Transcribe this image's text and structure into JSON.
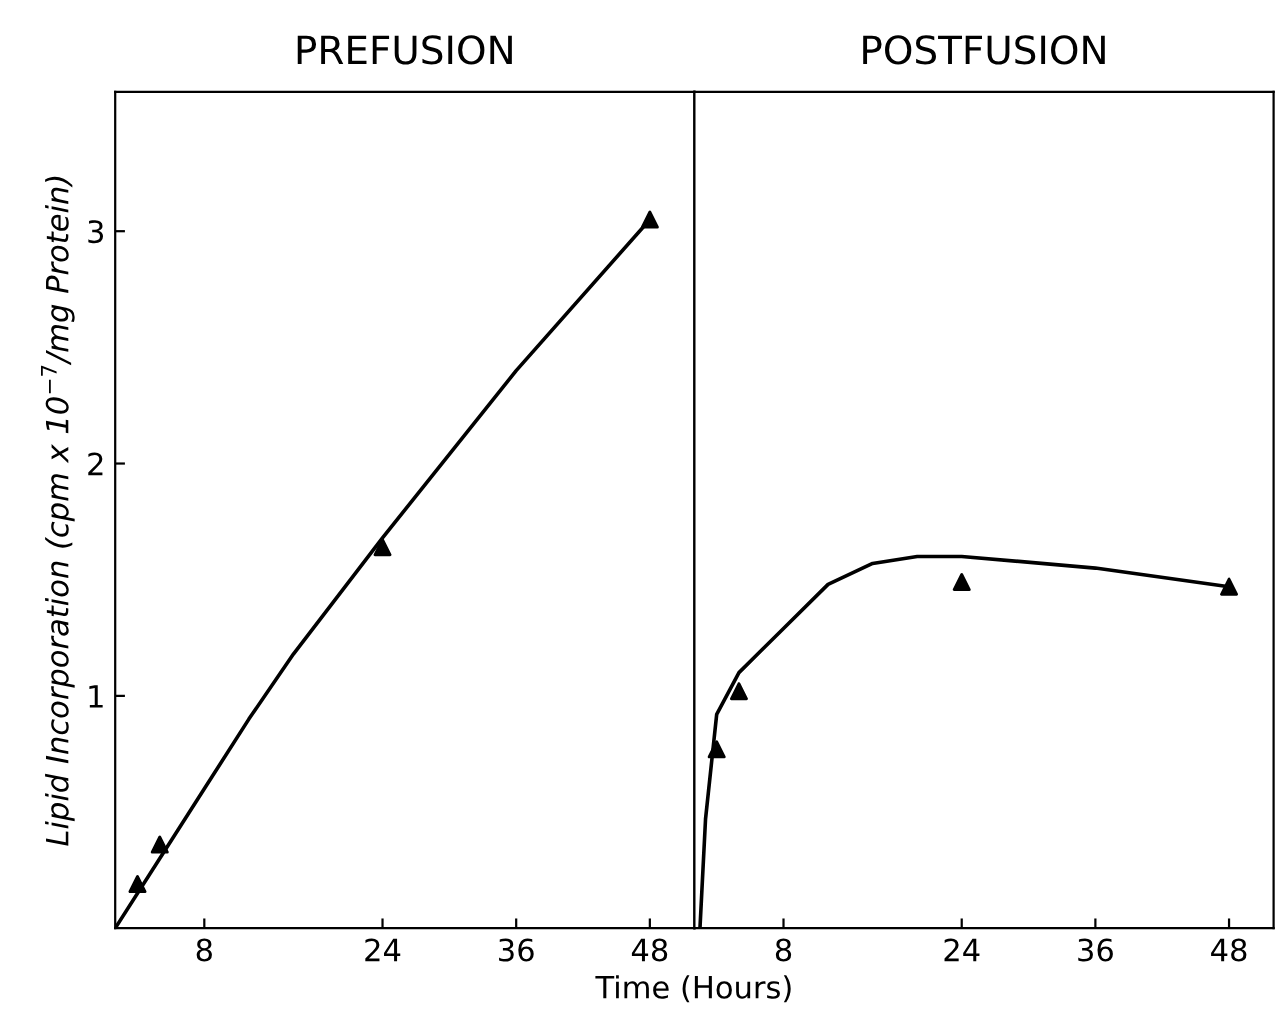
{
  "chart_data": [
    {
      "type": "scatter",
      "title": "PREFUSION",
      "xlabel": "Time (Hours)",
      "ylabel": "Lipid Incorporation (cpm x 10$^{−7}$/mg Protein)",
      "xlim": [
        0,
        52
      ],
      "xticks": [
        8,
        24,
        36,
        48
      ],
      "ylim": [
        0,
        3.6
      ],
      "yticks": [
        1,
        2,
        3
      ],
      "grid": false,
      "legend": false,
      "series": [
        {
          "color": "#000000",
          "marker": "triangle",
          "x": [
            2,
            4,
            24,
            48
          ],
          "values": [
            0.19,
            0.36,
            1.64,
            3.05
          ]
        },
        {
          "type": "line",
          "color": "#000000",
          "marker": "none",
          "line_style": "solid",
          "x": [
            0,
            4,
            8,
            12,
            16,
            24,
            36,
            48
          ],
          "values": [
            0,
            0.3,
            0.6,
            0.9,
            1.18,
            1.68,
            2.4,
            3.05
          ]
        }
      ]
    },
    {
      "type": "scatter",
      "title": "POSTFUSION",
      "xlim": [
        0,
        52
      ],
      "xticks": [
        8,
        24,
        36,
        48
      ],
      "ylim": [
        0,
        3.6
      ],
      "tick_labels": "x",
      "grid": false,
      "legend": false,
      "series": [
        {
          "color": "#000000",
          "marker": "triangle",
          "x": [
            2,
            4,
            24,
            48
          ],
          "values": [
            0.77,
            1.02,
            1.49,
            1.47
          ]
        },
        {
          "type": "line",
          "color": "#000000",
          "marker": "none",
          "line_style": "solid",
          "x": [
            0.5,
            1,
            2,
            4,
            8,
            12,
            16,
            20,
            24,
            36,
            48
          ],
          "values": [
            0,
            0.47,
            0.92,
            1.1,
            1.29,
            1.48,
            1.57,
            1.6,
            1.6,
            1.55,
            1.47
          ]
        }
      ]
    }
  ]
}
